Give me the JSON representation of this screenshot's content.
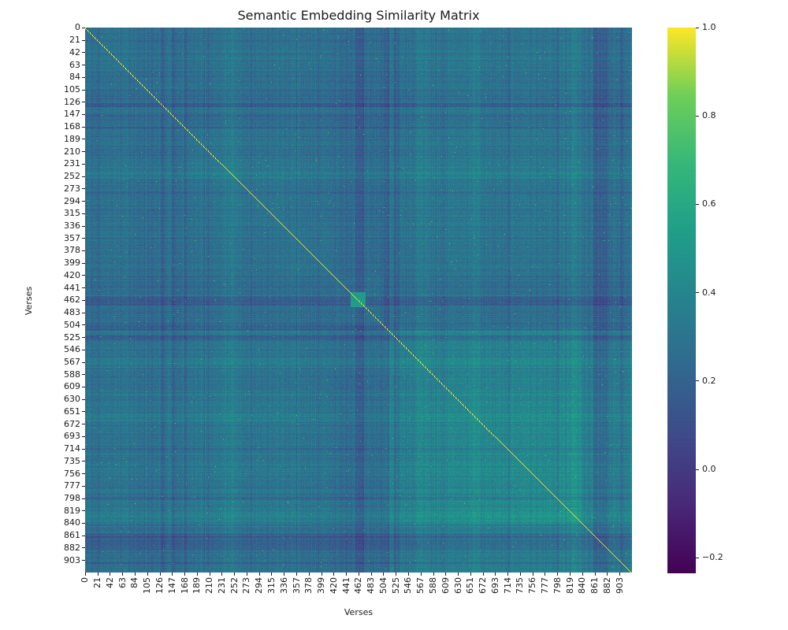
{
  "chart_data": {
    "type": "heatmap",
    "title": "Semantic Embedding Similarity Matrix",
    "xlabel": "Verses",
    "ylabel": "Verses",
    "n": 924,
    "tick_step": 21,
    "x_ticks": [
      0,
      21,
      42,
      63,
      84,
      105,
      126,
      147,
      168,
      189,
      210,
      231,
      252,
      273,
      294,
      315,
      336,
      357,
      378,
      399,
      420,
      441,
      462,
      483,
      504,
      525,
      546,
      567,
      588,
      609,
      630,
      651,
      672,
      693,
      714,
      735,
      756,
      777,
      798,
      819,
      840,
      861,
      882,
      903
    ],
    "y_ticks": [
      0,
      21,
      42,
      63,
      84,
      105,
      126,
      147,
      168,
      189,
      210,
      231,
      252,
      273,
      294,
      315,
      336,
      357,
      378,
      399,
      420,
      441,
      462,
      483,
      504,
      525,
      546,
      567,
      588,
      609,
      630,
      651,
      672,
      693,
      714,
      735,
      756,
      777,
      798,
      819,
      840,
      861,
      882,
      903
    ],
    "colormap": "viridis",
    "viridis_anchors": [
      "#440154",
      "#482878",
      "#3e4a89",
      "#31688e",
      "#26828e",
      "#1f9e89",
      "#35b779",
      "#6ece58",
      "#fde725"
    ],
    "vmin": -0.235,
    "vmax": 1.0,
    "colorbar_ticks": [
      {
        "label": "1.0",
        "value": 1.0
      },
      {
        "label": "0.8",
        "value": 0.8
      },
      {
        "label": "0.6",
        "value": 0.6
      },
      {
        "label": "0.4",
        "value": 0.4
      },
      {
        "label": "0.2",
        "value": 0.2
      },
      {
        "label": "0.0",
        "value": 0.0
      },
      {
        "label": "−0.2",
        "value": -0.2
      }
    ],
    "diagonal_value": 1.0,
    "offdiagonal_typical_range": [
      0.1,
      0.55
    ],
    "description": "924x924 cosine-similarity matrix of verse embeddings; diagonal = 1.0 (yellow dotted line), off-diagonal mostly 0.2-0.45 (teal), lower-right region (verses ~504-860) more mutually similar (greener), dark blue bands mark dissimilar verses, bright self-similar block near verses 448-472.",
    "block_size": 84,
    "block_means": [
      [
        0.29,
        0.27,
        0.28,
        0.28,
        0.28,
        0.26,
        0.29,
        0.3,
        0.3,
        0.3,
        0.28
      ],
      [
        0.27,
        0.28,
        0.27,
        0.27,
        0.27,
        0.25,
        0.28,
        0.29,
        0.29,
        0.29,
        0.27
      ],
      [
        0.28,
        0.27,
        0.3,
        0.29,
        0.28,
        0.26,
        0.3,
        0.31,
        0.31,
        0.31,
        0.29
      ],
      [
        0.28,
        0.27,
        0.29,
        0.3,
        0.28,
        0.26,
        0.3,
        0.31,
        0.31,
        0.31,
        0.29
      ],
      [
        0.28,
        0.27,
        0.28,
        0.28,
        0.29,
        0.26,
        0.29,
        0.3,
        0.3,
        0.3,
        0.28
      ],
      [
        0.26,
        0.25,
        0.26,
        0.26,
        0.26,
        0.27,
        0.27,
        0.27,
        0.27,
        0.27,
        0.26
      ],
      [
        0.29,
        0.28,
        0.3,
        0.3,
        0.29,
        0.27,
        0.36,
        0.36,
        0.37,
        0.37,
        0.33
      ],
      [
        0.3,
        0.29,
        0.31,
        0.31,
        0.3,
        0.27,
        0.36,
        0.39,
        0.4,
        0.4,
        0.35
      ],
      [
        0.3,
        0.29,
        0.31,
        0.31,
        0.3,
        0.27,
        0.37,
        0.4,
        0.42,
        0.42,
        0.36
      ],
      [
        0.3,
        0.29,
        0.31,
        0.31,
        0.3,
        0.27,
        0.37,
        0.4,
        0.42,
        0.43,
        0.36
      ],
      [
        0.28,
        0.27,
        0.29,
        0.29,
        0.28,
        0.26,
        0.33,
        0.35,
        0.36,
        0.36,
        0.34
      ]
    ],
    "features": {
      "bright_self_block": {
        "start": 448,
        "end": 472,
        "value": 0.52
      },
      "dark_bands": [
        [
          128,
          133
        ],
        [
          146,
          150
        ],
        [
          167,
          171
        ],
        [
          456,
          470
        ],
        [
          504,
          512
        ],
        [
          521,
          529
        ],
        [
          713,
          716
        ],
        [
          795,
          799
        ],
        [
          857,
          883
        ],
        [
          904,
          909
        ]
      ],
      "bright_bands": [
        [
          229,
          253
        ],
        [
          560,
          575
        ],
        [
          648,
          667
        ],
        [
          818,
          837
        ]
      ],
      "speckle_probability": 0.0018,
      "speckle_value": 0.62
    },
    "colors": {
      "background": "#ffffff",
      "text": "#1a1a1a"
    }
  }
}
